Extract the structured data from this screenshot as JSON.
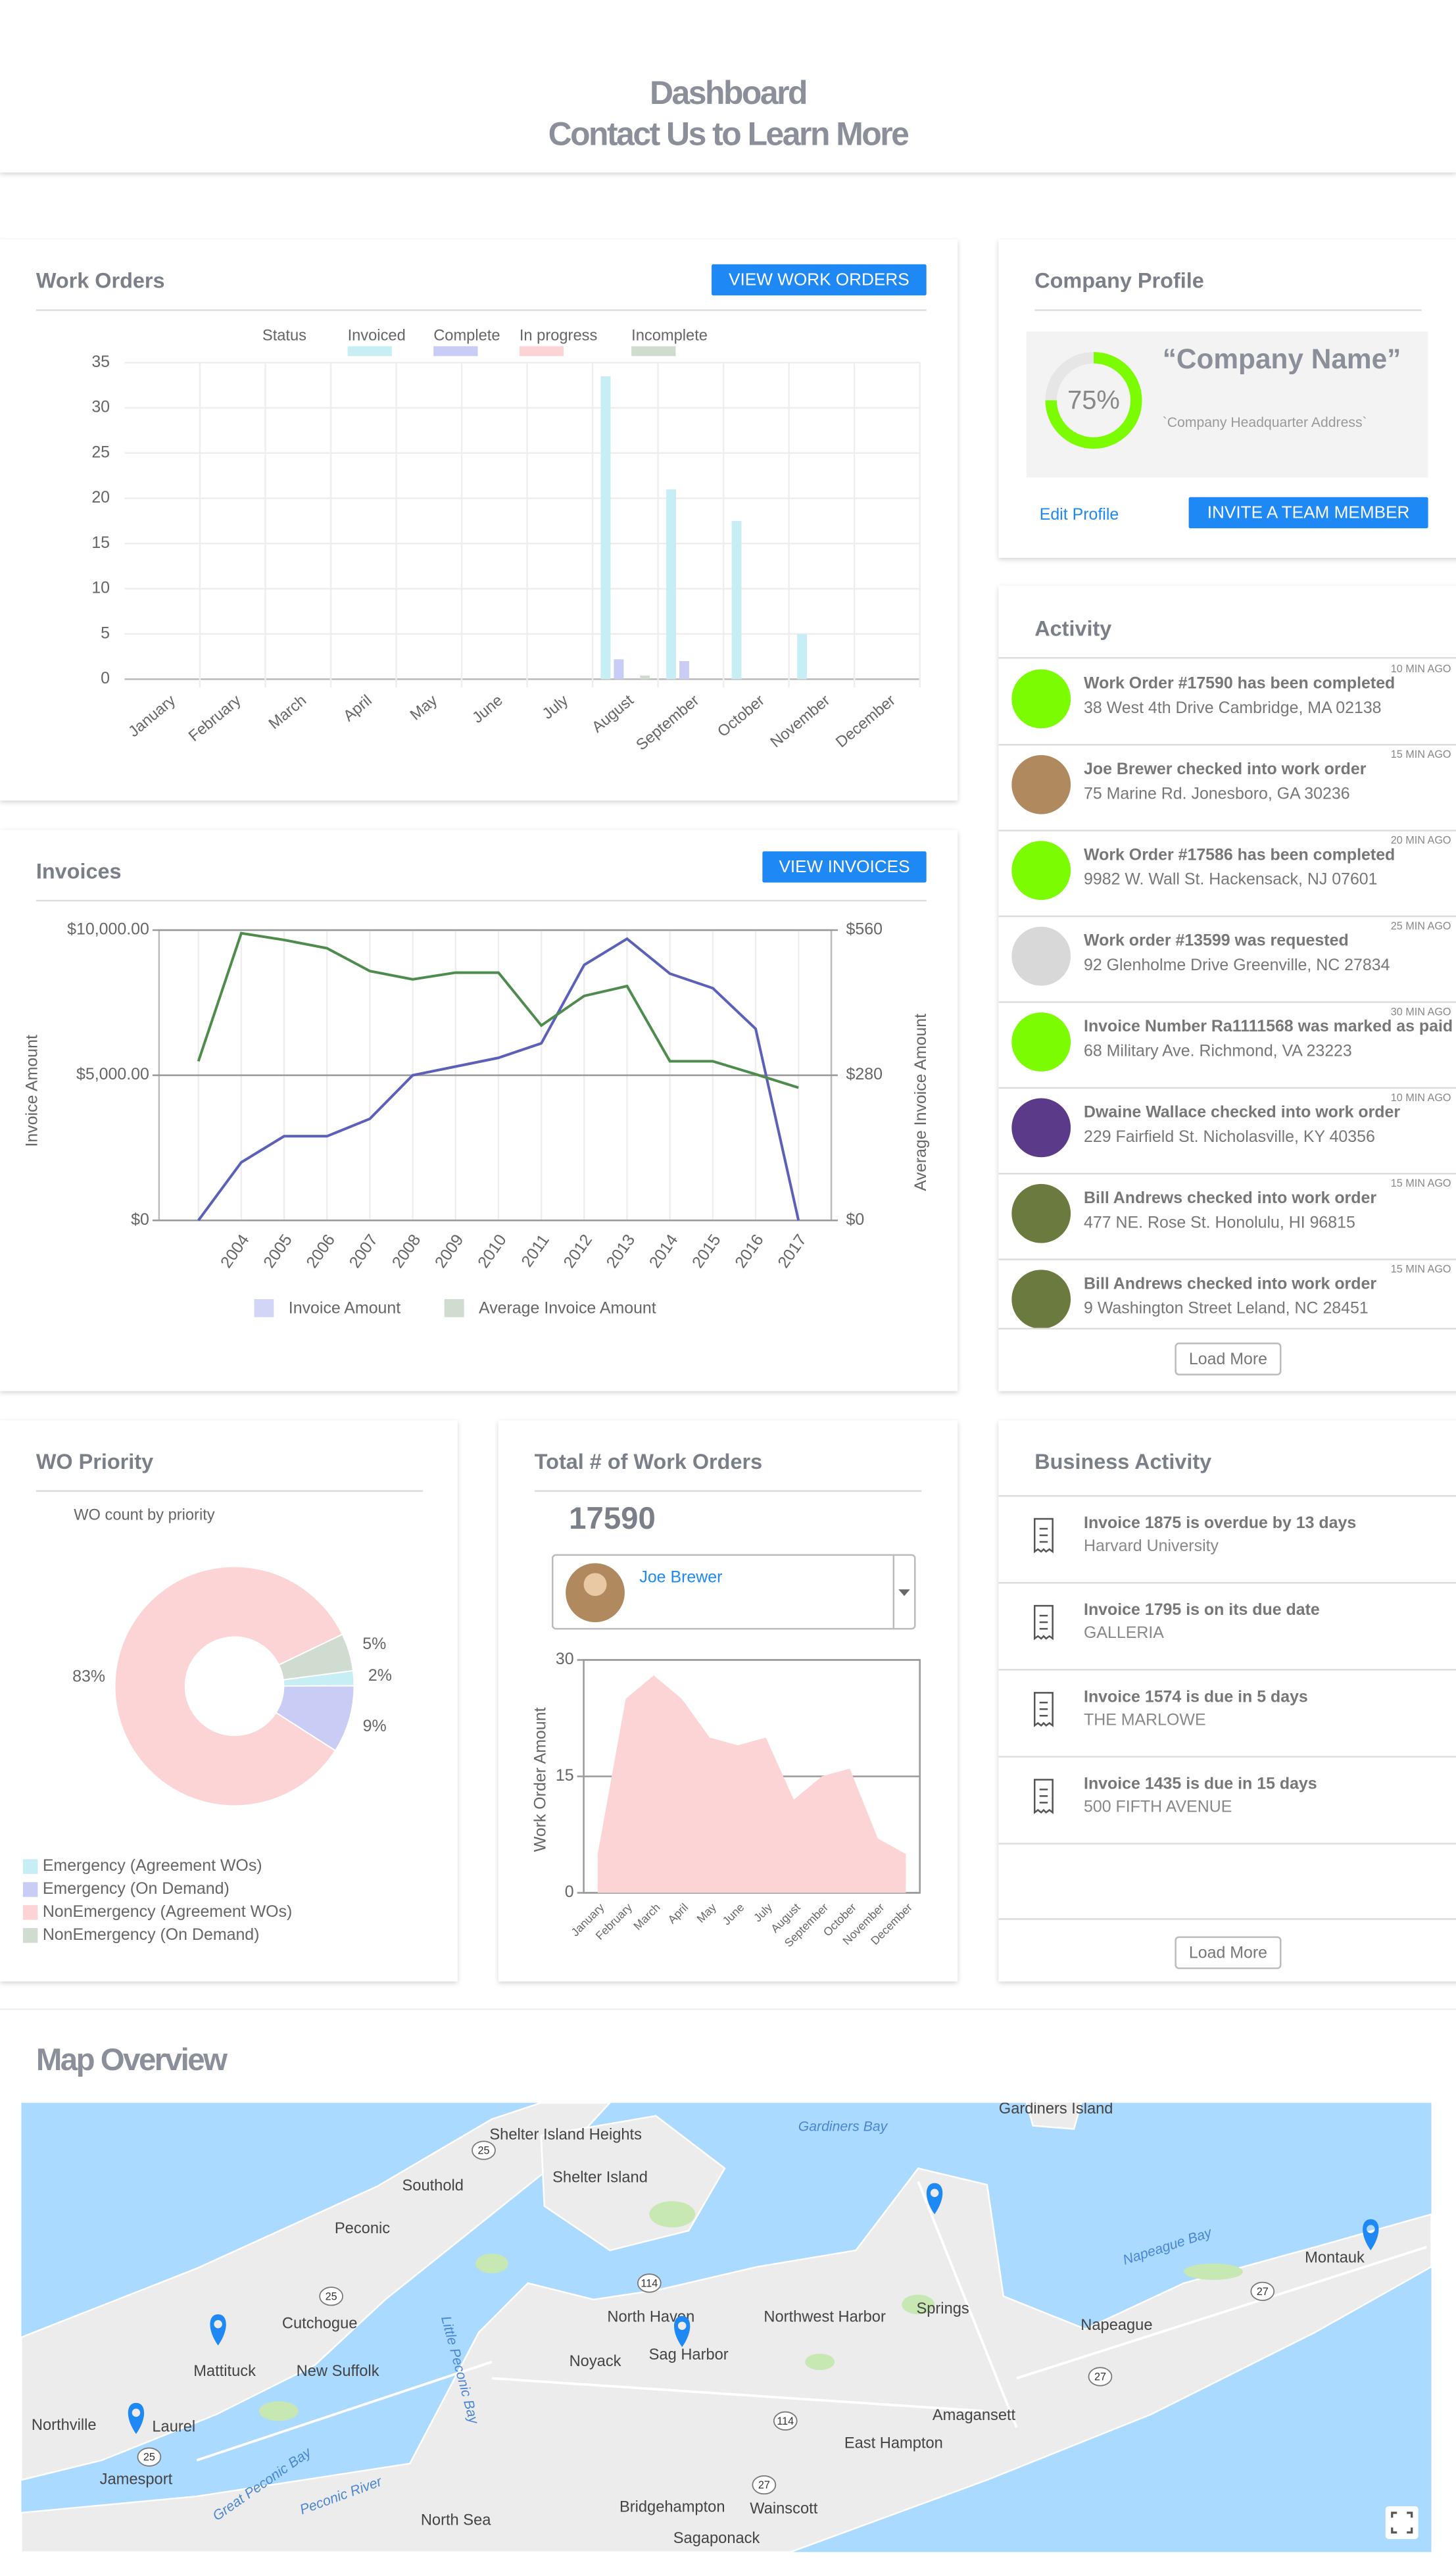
{
  "header": {
    "title": "Dashboard",
    "subtitle": "Contact Us to Learn More"
  },
  "chart_data": [
    {
      "type": "bar",
      "title": "Work Orders",
      "button": "VIEW WORK ORDERS",
      "legend_title": "Status",
      "legend": "top",
      "categories": [
        "January",
        "February",
        "March",
        "April",
        "May",
        "June",
        "July",
        "August",
        "September",
        "October",
        "November",
        "December"
      ],
      "series": [
        {
          "name": "Invoiced",
          "color": "#c8eef5",
          "values": [
            0,
            0,
            0,
            0,
            0,
            0,
            0,
            33.5,
            21,
            17.5,
            5,
            0
          ]
        },
        {
          "name": "Complete",
          "color": "#c9ccf5",
          "values": [
            0,
            0,
            0,
            0,
            0,
            0,
            0,
            2.2,
            2,
            0,
            0,
            0
          ]
        },
        {
          "name": "In progress",
          "color": "#fdd4d6",
          "values": [
            0,
            0,
            0,
            0,
            0,
            0,
            0,
            0,
            0,
            0,
            0,
            0
          ]
        },
        {
          "name": "Incomplete",
          "color": "#cfdccf",
          "values": [
            0,
            0,
            0,
            0,
            0,
            0,
            0,
            0.4,
            0,
            0,
            0,
            0
          ]
        }
      ],
      "ylim": [
        0,
        35
      ],
      "yticks": [
        0,
        5,
        10,
        15,
        20,
        25,
        30,
        35
      ],
      "grid": true
    },
    {
      "type": "line",
      "title": "Invoices",
      "button": "VIEW INVOICES",
      "legend": "bottom",
      "categories": [
        null,
        "2004",
        "2005",
        "2006",
        "2007",
        "2008",
        "2009",
        "2010",
        "2011",
        "2012",
        "2013",
        "2014",
        "2015",
        "2016",
        "2017"
      ],
      "series": [
        {
          "name": "Invoice Amount",
          "color": "#5b60b8",
          "legend_color": "#d3d5f7",
          "values": [
            0,
            2000,
            2900,
            2900,
            3500,
            5000,
            5300,
            5600,
            6100,
            8800,
            9700,
            8500,
            8000,
            6600,
            0
          ]
        },
        {
          "name": "Average Invoice Amount",
          "color": "#4e8c4e",
          "legend_color": "#cfdccf",
          "axis": "y2",
          "values": [
            307,
            554,
            541,
            525,
            481,
            465,
            478,
            478,
            376,
            433,
            452,
            307,
            307,
            282,
            256
          ]
        }
      ],
      "ylim": [
        0,
        10000
      ],
      "yticks": [
        {
          "value": 0,
          "label": "$0"
        },
        {
          "value": 5000,
          "label": "$5,000.00"
        },
        {
          "value": 10000,
          "label": "$10,000.00"
        }
      ],
      "y2lim": [
        0,
        560
      ],
      "y2ticks": [
        {
          "value": 0,
          "label": "$0"
        },
        {
          "value": 280,
          "label": "$280"
        },
        {
          "value": 560,
          "label": "$560"
        }
      ],
      "ylabel": "Invoice Amount",
      "y2label": "Average Invoice Amount",
      "grid": true
    },
    {
      "type": "pie",
      "title": "WO Priority",
      "subtitle": "WO count by priority",
      "donut": true,
      "legend": "bottom-left",
      "categories": [
        "Emergency (Agreement WOs)",
        "Emergency (On Demand)",
        "NonEmergency (Agreement WOs)",
        "NonEmergency (On Demand)"
      ],
      "values": [
        2,
        9,
        83,
        5
      ],
      "value_labels": [
        "2%",
        "9%",
        "83%",
        "5%"
      ],
      "colors": [
        "#c8eef5",
        "#c9ccf5",
        "#fdd4d6",
        "#cfdccf"
      ]
    },
    {
      "type": "area",
      "title": "Total # of Work Orders",
      "total": 17590,
      "selector": "Joe Brewer",
      "categories": [
        "January",
        "February",
        "March",
        "April",
        "May",
        "June",
        "July",
        "August",
        "September",
        "October",
        "November",
        "December"
      ],
      "values": [
        5,
        25,
        28,
        25,
        20,
        19,
        20,
        12,
        15,
        16,
        7,
        5
      ],
      "color": "#fdd4d6",
      "ylim": [
        0,
        30
      ],
      "yticks": [
        0,
        15,
        30
      ],
      "ylabel": "Work Order Amount",
      "grid": true
    }
  ],
  "company_profile": {
    "title": "Company Profile",
    "name": "“Company Name”",
    "address": "`Company Headquarter Address`",
    "completion": 75,
    "completion_label": "75%",
    "edit": "Edit Profile",
    "button": "INVITE A TEAM MEMBER"
  },
  "activity": {
    "title": "Activity",
    "load_more": "Load More",
    "items": [
      {
        "title": "Work Order #17590 has been completed",
        "address": "38 West 4th Drive Cambridge, MA 02138",
        "time": "10 MIN AGO",
        "avatar_color": "#7cfc00"
      },
      {
        "title": "Joe Brewer checked into work order",
        "address": "75 Marine Rd. Jonesboro, GA 30236",
        "time": "15 MIN AGO",
        "avatar_color": "#b08a5e"
      },
      {
        "title": "Work Order #17586 has been completed",
        "address": "9982 W. Wall St. Hackensack, NJ 07601",
        "time": "20 MIN AGO",
        "avatar_color": "#7cfc00"
      },
      {
        "title": "Work order #13599 was requested",
        "address": "92 Glenholme Drive Greenville, NC 27834",
        "time": "25 MIN AGO",
        "avatar_color": "#d8d8d8"
      },
      {
        "title": "Invoice Number Ra1111568 was marked as paid",
        "address": "68 Military Ave. Richmond, VA 23223",
        "time": "30 MIN AGO",
        "avatar_color": "#7cfc00"
      },
      {
        "title": "Dwaine Wallace checked into work order",
        "address": "229 Fairfield St. Nicholasville, KY 40356",
        "time": "10 MIN AGO",
        "avatar_color": "#5b3a8a"
      },
      {
        "title": "Bill Andrews checked into work order",
        "address": "477 NE. Rose St. Honolulu, HI 96815",
        "time": "15 MIN AGO",
        "avatar_color": "#6b7a3e"
      },
      {
        "title": "Bill Andrews checked into work order",
        "address": "9 Washington Street Leland, NC 28451",
        "time": "15 MIN AGO",
        "avatar_color": "#6b7a3e"
      }
    ]
  },
  "business_activity": {
    "title": "Business Activity",
    "load_more": "Load More",
    "items": [
      {
        "title": "Invoice 1875 is overdue by 13 days",
        "subtitle": "Harvard University"
      },
      {
        "title": "Invoice 1795 is on its due date",
        "subtitle": "GALLERIA"
      },
      {
        "title": "Invoice 1574 is due in 5 days",
        "subtitle": "THE MARLOWE"
      },
      {
        "title": "Invoice 1435 is due in 15 days",
        "subtitle": "500 FIFTH AVENUE"
      }
    ]
  },
  "map": {
    "title": "Map Overview",
    "places": [
      "Shelter Island Heights",
      "Shelter Island",
      "Southold",
      "Peconic",
      "Cutchogue",
      "Mattituck",
      "New Suffolk",
      "Laurel",
      "Northville",
      "Jamesport",
      "North Haven",
      "Sag Harbor",
      "Noyack",
      "Northwest Harbor",
      "Springs",
      "Napeague",
      "Montauk",
      "Amagansett",
      "East Hampton",
      "Bridgehampton",
      "Wainscott",
      "Sagaponack",
      "North Sea",
      "Gardiners Island"
    ],
    "water": [
      "Gardiners Bay",
      "Napeague Bay",
      "Little Peconic Bay",
      "Great Peconic Bay",
      "Peconic River"
    ],
    "routes": [
      "25",
      "25",
      "25",
      "114",
      "114",
      "27",
      "27",
      "27"
    ]
  }
}
